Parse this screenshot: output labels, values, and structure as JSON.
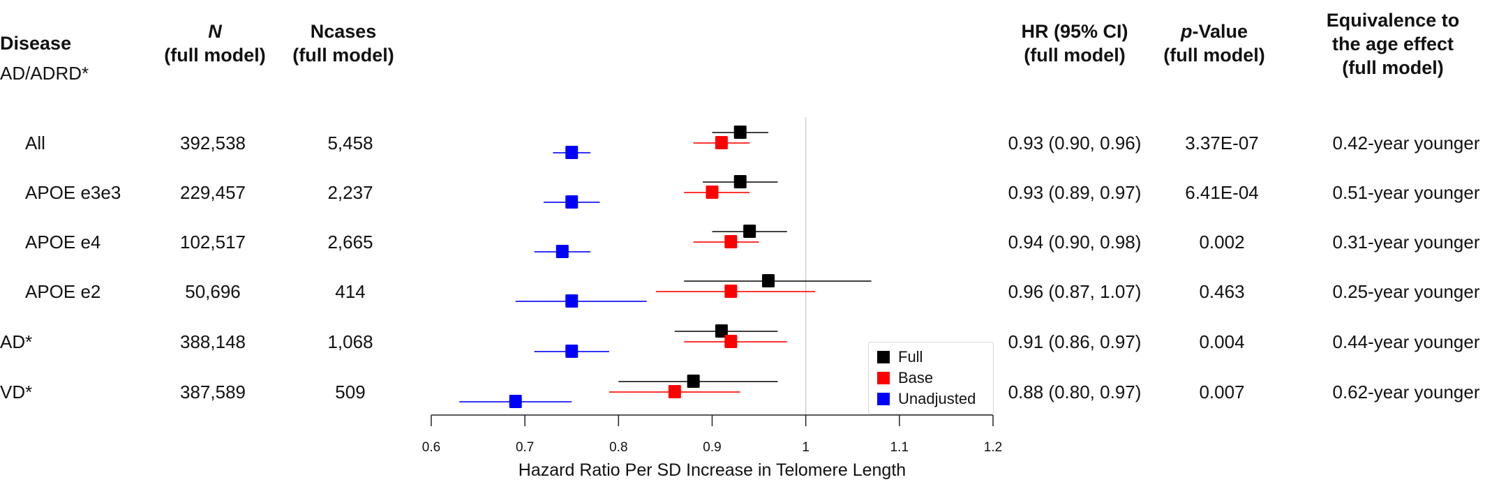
{
  "headers": {
    "disease": "Disease",
    "n_line1": "N",
    "n_line2": "(full model)",
    "ncases_line1": "Ncases",
    "ncases_line2": "(full model)",
    "hr_line1": "HR (95% CI)",
    "hr_line2": "(full model)",
    "p_line1_italic": "p",
    "p_line1_rest": "-Value",
    "p_line2": "(full model)",
    "eq_line1": "Equivalence to",
    "eq_line2": "the age effect",
    "eq_line3": "(full model)"
  },
  "group_label": "AD/ADRD*",
  "rows": [
    {
      "label": "All",
      "n": "392,538",
      "ncases": "5,458",
      "hr_ci": "0.93 (0.90, 0.96)",
      "p": "3.37E-07",
      "equiv": "0.42-year younger"
    },
    {
      "label": "APOE e3e3",
      "n": "229,457",
      "ncases": "2,237",
      "hr_ci": "0.93 (0.89, 0.97)",
      "p": "6.41E-04",
      "equiv": "0.51-year younger"
    },
    {
      "label": "APOE e4",
      "n": "102,517",
      "ncases": "2,665",
      "hr_ci": "0.94 (0.90, 0.98)",
      "p": "0.002",
      "equiv": "0.31-year younger"
    },
    {
      "label": "APOE e2",
      "n": "50,696",
      "ncases": "414",
      "hr_ci": "0.96 (0.87, 1.07)",
      "p": "0.463",
      "equiv": "0.25-year younger"
    },
    {
      "label": "AD*",
      "n": "388,148",
      "ncases": "1,068",
      "hr_ci": "0.91 (0.86, 0.97)",
      "p": "0.004",
      "equiv": "0.44-year younger"
    },
    {
      "label": "VD*",
      "n": "387,589",
      "ncases": "509",
      "hr_ci": "0.88 (0.80, 0.97)",
      "p": "0.007",
      "equiv": "0.62-year younger"
    }
  ],
  "legend": [
    {
      "name": "Full",
      "color": "#000000"
    },
    {
      "name": "Base",
      "color": "#ff0000"
    },
    {
      "name": "Unadjusted",
      "color": "#0000ff"
    }
  ],
  "chart_data": {
    "type": "forest",
    "xlabel": "Hazard Ratio Per SD Increase in Telomere Length",
    "xlim": [
      0.6,
      1.2
    ],
    "xticks": [
      0.6,
      0.7,
      0.8,
      0.9,
      1.0,
      1.1,
      1.2
    ],
    "xtick_labels": [
      "0.6",
      "0.7",
      "0.8",
      "0.9",
      "1",
      "1.1",
      "1.2"
    ],
    "reference_line": 1.0,
    "legend_position": "bottom-right",
    "categories": [
      "All",
      "APOE e3e3",
      "APOE e4",
      "APOE e2",
      "AD*",
      "VD*"
    ],
    "series": [
      {
        "name": "Full",
        "color": "#000000",
        "estimates": [
          0.93,
          0.93,
          0.94,
          0.96,
          0.91,
          0.88
        ],
        "lower": [
          0.9,
          0.89,
          0.9,
          0.87,
          0.86,
          0.8
        ],
        "upper": [
          0.96,
          0.97,
          0.98,
          1.07,
          0.97,
          0.97
        ]
      },
      {
        "name": "Base",
        "color": "#ff0000",
        "estimates": [
          0.91,
          0.9,
          0.92,
          0.92,
          0.92,
          0.86
        ],
        "lower": [
          0.88,
          0.87,
          0.88,
          0.84,
          0.87,
          0.79
        ],
        "upper": [
          0.94,
          0.94,
          0.95,
          1.01,
          0.98,
          0.93
        ]
      },
      {
        "name": "Unadjusted",
        "color": "#0000ff",
        "estimates": [
          0.75,
          0.75,
          0.74,
          0.75,
          0.75,
          0.69
        ],
        "lower": [
          0.73,
          0.72,
          0.71,
          0.69,
          0.71,
          0.63
        ],
        "upper": [
          0.77,
          0.78,
          0.77,
          0.83,
          0.79,
          0.75
        ]
      }
    ]
  }
}
